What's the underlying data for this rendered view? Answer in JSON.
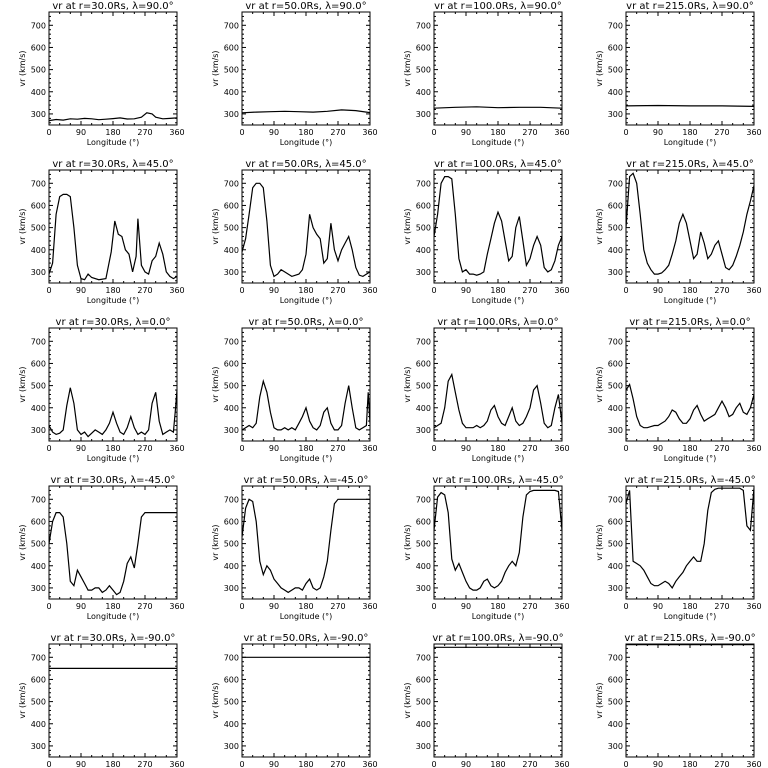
{
  "figure": {
    "xlabel": "Longitude (°)",
    "ylabel": "vr (km/s)",
    "x_ticks": [
      0,
      90,
      180,
      270,
      360
    ],
    "y_ticks": [
      300,
      400,
      500,
      600,
      700
    ],
    "xlim": [
      0,
      360
    ],
    "ylim": [
      250,
      760
    ]
  },
  "chart_data": [
    {
      "type": "line",
      "title": "vr at r=30.0Rs, λ=90.0°",
      "x": [
        0,
        20,
        40,
        60,
        80,
        100,
        120,
        140,
        160,
        180,
        200,
        220,
        240,
        260,
        275,
        290,
        300,
        320,
        340,
        360
      ],
      "values": [
        270,
        275,
        272,
        278,
        276,
        280,
        278,
        274,
        276,
        279,
        282,
        277,
        278,
        285,
        305,
        300,
        285,
        278,
        280,
        282
      ]
    },
    {
      "type": "line",
      "title": "vr at r=50.0Rs, λ=90.0°",
      "x": [
        0,
        40,
        80,
        120,
        160,
        200,
        240,
        280,
        320,
        360
      ],
      "values": [
        305,
        308,
        310,
        312,
        310,
        308,
        312,
        318,
        315,
        306
      ]
    },
    {
      "type": "line",
      "title": "vr at r=100.0Rs, λ=90.0°",
      "x": [
        0,
        60,
        120,
        180,
        240,
        300,
        360
      ],
      "values": [
        326,
        330,
        332,
        328,
        330,
        330,
        326
      ]
    },
    {
      "type": "line",
      "title": "vr at r=215.0Rs, λ=90.0°",
      "x": [
        0,
        90,
        180,
        270,
        360
      ],
      "values": [
        336,
        338,
        336,
        336,
        334
      ]
    },
    {
      "type": "line",
      "title": "vr at r=30.0Rs, λ=45.0°",
      "x": [
        0,
        10,
        20,
        30,
        40,
        50,
        60,
        70,
        80,
        90,
        100,
        110,
        120,
        140,
        160,
        175,
        185,
        195,
        205,
        215,
        225,
        235,
        245,
        250,
        260,
        270,
        280,
        290,
        300,
        310,
        320,
        330,
        340,
        350,
        360
      ],
      "values": [
        290,
        340,
        560,
        640,
        650,
        650,
        640,
        500,
        330,
        270,
        265,
        290,
        275,
        265,
        270,
        390,
        530,
        470,
        460,
        400,
        380,
        300,
        370,
        540,
        330,
        300,
        290,
        350,
        370,
        430,
        380,
        300,
        280,
        270,
        280
      ]
    },
    {
      "type": "line",
      "title": "vr at r=50.0Rs, λ=45.0°",
      "x": [
        0,
        10,
        20,
        30,
        40,
        50,
        60,
        70,
        80,
        90,
        100,
        110,
        120,
        140,
        160,
        170,
        180,
        190,
        200,
        210,
        220,
        230,
        240,
        250,
        260,
        270,
        280,
        290,
        300,
        310,
        320,
        330,
        340,
        350,
        360
      ],
      "values": [
        390,
        450,
        560,
        680,
        700,
        700,
        680,
        530,
        330,
        280,
        290,
        310,
        300,
        280,
        290,
        310,
        380,
        560,
        500,
        470,
        450,
        340,
        360,
        520,
        400,
        350,
        400,
        430,
        460,
        400,
        320,
        285,
        280,
        290,
        300
      ]
    },
    {
      "type": "line",
      "title": "vr at r=100.0Rs, λ=45.0°",
      "x": [
        0,
        10,
        20,
        30,
        40,
        50,
        60,
        70,
        80,
        90,
        100,
        110,
        120,
        130,
        140,
        150,
        160,
        170,
        180,
        190,
        200,
        210,
        220,
        230,
        240,
        250,
        260,
        270,
        280,
        290,
        300,
        310,
        320,
        330,
        340,
        350,
        360
      ],
      "values": [
        460,
        560,
        700,
        730,
        730,
        720,
        560,
        360,
        300,
        310,
        290,
        290,
        285,
        290,
        300,
        380,
        450,
        520,
        570,
        530,
        440,
        350,
        370,
        500,
        550,
        440,
        330,
        360,
        420,
        460,
        420,
        320,
        300,
        310,
        350,
        420,
        460
      ]
    },
    {
      "type": "line",
      "title": "vr at r=215.0Rs, λ=45.0°",
      "x": [
        0,
        10,
        20,
        30,
        40,
        50,
        60,
        70,
        80,
        90,
        100,
        110,
        120,
        130,
        140,
        150,
        160,
        170,
        180,
        190,
        200,
        210,
        220,
        230,
        240,
        250,
        260,
        270,
        280,
        290,
        300,
        310,
        320,
        330,
        340,
        350,
        360
      ],
      "values": [
        500,
        730,
        745,
        700,
        560,
        400,
        340,
        310,
        290,
        290,
        295,
        310,
        330,
        380,
        440,
        520,
        560,
        520,
        440,
        360,
        380,
        480,
        430,
        360,
        380,
        420,
        440,
        380,
        320,
        310,
        330,
        370,
        420,
        480,
        560,
        620,
        690
      ]
    },
    {
      "type": "line",
      "title": "vr at r=30.0Rs, λ=0.0°",
      "x": [
        0,
        10,
        20,
        30,
        40,
        50,
        60,
        70,
        80,
        90,
        100,
        110,
        120,
        130,
        140,
        150,
        160,
        170,
        180,
        190,
        200,
        210,
        220,
        230,
        240,
        250,
        260,
        270,
        280,
        290,
        300,
        310,
        320,
        330,
        340,
        350,
        355,
        360
      ],
      "values": [
        320,
        290,
        280,
        285,
        300,
        410,
        490,
        420,
        300,
        280,
        290,
        270,
        285,
        300,
        290,
        280,
        300,
        330,
        380,
        330,
        290,
        280,
        310,
        360,
        310,
        280,
        290,
        280,
        300,
        420,
        470,
        340,
        280,
        290,
        300,
        290,
        380,
        480
      ]
    },
    {
      "type": "line",
      "title": "vr at r=50.0Rs, λ=0.0°",
      "x": [
        0,
        10,
        20,
        30,
        40,
        50,
        60,
        70,
        80,
        90,
        100,
        110,
        120,
        130,
        140,
        150,
        160,
        170,
        180,
        190,
        200,
        210,
        220,
        230,
        240,
        250,
        260,
        270,
        280,
        290,
        300,
        310,
        320,
        330,
        340,
        350,
        355,
        360
      ],
      "values": [
        300,
        310,
        320,
        310,
        330,
        450,
        520,
        470,
        380,
        310,
        300,
        300,
        310,
        300,
        310,
        300,
        330,
        360,
        400,
        340,
        310,
        300,
        320,
        380,
        400,
        330,
        300,
        300,
        320,
        420,
        500,
        400,
        310,
        300,
        310,
        320,
        470,
        330
      ]
    },
    {
      "type": "line",
      "title": "vr at r=100.0Rs, λ=0.0°",
      "x": [
        0,
        10,
        20,
        30,
        40,
        50,
        60,
        70,
        80,
        90,
        100,
        110,
        120,
        130,
        140,
        150,
        160,
        170,
        180,
        190,
        200,
        210,
        220,
        230,
        240,
        250,
        260,
        270,
        280,
        290,
        300,
        310,
        320,
        330,
        340,
        350,
        360
      ],
      "values": [
        310,
        320,
        330,
        400,
        520,
        550,
        470,
        390,
        330,
        310,
        310,
        310,
        320,
        310,
        320,
        340,
        390,
        410,
        360,
        330,
        320,
        360,
        400,
        340,
        320,
        330,
        360,
        400,
        480,
        500,
        420,
        330,
        310,
        320,
        400,
        460,
        330
      ]
    },
    {
      "type": "line",
      "title": "vr at r=215.0Rs, λ=0.0°",
      "x": [
        0,
        10,
        20,
        30,
        40,
        50,
        60,
        70,
        80,
        90,
        100,
        110,
        120,
        130,
        140,
        150,
        160,
        170,
        180,
        190,
        200,
        210,
        220,
        230,
        240,
        250,
        260,
        270,
        280,
        290,
        300,
        310,
        320,
        330,
        340,
        350,
        360
      ],
      "values": [
        480,
        505,
        440,
        360,
        320,
        310,
        310,
        315,
        320,
        320,
        330,
        340,
        360,
        390,
        380,
        350,
        330,
        330,
        350,
        390,
        410,
        370,
        340,
        350,
        360,
        370,
        400,
        430,
        400,
        360,
        370,
        400,
        420,
        380,
        370,
        400,
        460
      ]
    },
    {
      "type": "line",
      "title": "vr at r=30.0Rs, λ=-45.0°",
      "x": [
        0,
        10,
        20,
        30,
        40,
        50,
        60,
        70,
        80,
        90,
        100,
        110,
        120,
        130,
        140,
        150,
        160,
        170,
        180,
        190,
        200,
        210,
        220,
        230,
        240,
        250,
        260,
        270,
        280,
        290,
        300,
        310,
        320,
        330,
        340,
        350,
        360
      ],
      "values": [
        500,
        600,
        640,
        640,
        620,
        500,
        330,
        310,
        380,
        350,
        320,
        290,
        290,
        300,
        300,
        280,
        290,
        310,
        290,
        270,
        280,
        330,
        410,
        440,
        390,
        500,
        620,
        640,
        640,
        640,
        640,
        640,
        640,
        640,
        640,
        640,
        640
      ]
    },
    {
      "type": "line",
      "title": "vr at r=50.0Rs, λ=-45.0°",
      "x": [
        0,
        10,
        20,
        30,
        40,
        50,
        60,
        70,
        80,
        90,
        100,
        110,
        120,
        130,
        140,
        150,
        160,
        170,
        180,
        190,
        200,
        210,
        220,
        230,
        240,
        250,
        260,
        270,
        280,
        290,
        300,
        310,
        320,
        330,
        340,
        350,
        360
      ],
      "values": [
        530,
        660,
        700,
        690,
        600,
        420,
        360,
        400,
        380,
        340,
        320,
        300,
        290,
        280,
        290,
        300,
        300,
        290,
        320,
        340,
        300,
        290,
        300,
        350,
        420,
        560,
        680,
        700,
        700,
        700,
        700,
        700,
        700,
        700,
        700,
        700,
        700
      ]
    },
    {
      "type": "line",
      "title": "vr at r=100.0Rs, λ=-45.0°",
      "x": [
        0,
        10,
        20,
        30,
        40,
        50,
        60,
        70,
        80,
        90,
        100,
        110,
        120,
        130,
        140,
        150,
        160,
        170,
        180,
        190,
        200,
        210,
        220,
        230,
        240,
        250,
        260,
        270,
        280,
        290,
        300,
        310,
        320,
        330,
        340,
        350,
        360
      ],
      "values": [
        560,
        710,
        730,
        720,
        640,
        430,
        380,
        410,
        370,
        330,
        300,
        290,
        290,
        300,
        330,
        340,
        310,
        300,
        310,
        330,
        370,
        400,
        420,
        400,
        460,
        620,
        720,
        735,
        740,
        740,
        740,
        740,
        740,
        740,
        740,
        735,
        560
      ]
    },
    {
      "type": "line",
      "title": "vr at r=215.0Rs, λ=-45.0°",
      "x": [
        0,
        10,
        20,
        30,
        40,
        50,
        60,
        70,
        80,
        90,
        100,
        110,
        120,
        130,
        140,
        150,
        160,
        170,
        180,
        190,
        200,
        210,
        220,
        230,
        240,
        250,
        260,
        270,
        280,
        290,
        300,
        310,
        320,
        330,
        340,
        350,
        360
      ],
      "values": [
        680,
        740,
        420,
        410,
        400,
        380,
        350,
        320,
        310,
        310,
        320,
        330,
        320,
        300,
        330,
        350,
        370,
        400,
        420,
        440,
        420,
        420,
        500,
        650,
        730,
        745,
        750,
        750,
        750,
        750,
        750,
        750,
        750,
        740,
        580,
        560,
        750
      ]
    },
    {
      "type": "line",
      "title": "vr at r=30.0Rs, λ=-90.0°",
      "x": [
        0,
        360
      ],
      "values": [
        650,
        650
      ]
    },
    {
      "type": "line",
      "title": "vr at r=50.0Rs, λ=-90.0°",
      "x": [
        0,
        360
      ],
      "values": [
        700,
        700
      ]
    },
    {
      "type": "line",
      "title": "vr at r=100.0Rs, λ=-90.0°",
      "x": [
        0,
        360
      ],
      "values": [
        745,
        745
      ]
    },
    {
      "type": "line",
      "title": "vr at r=215.0Rs, λ=-90.0°",
      "x": [
        0,
        360
      ],
      "values": [
        757,
        757
      ]
    }
  ]
}
